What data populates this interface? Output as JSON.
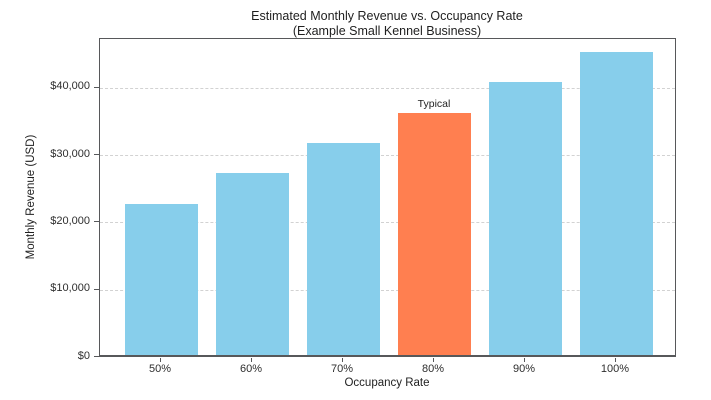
{
  "chart_data": {
    "type": "bar",
    "title": "Estimated Monthly Revenue vs. Occupancy Rate",
    "subtitle": "(Example Small Kennel Business)",
    "xlabel": "Occupancy Rate",
    "ylabel": "Monthly Revenue (USD)",
    "categories": [
      "50%",
      "60%",
      "70%",
      "80%",
      "90%",
      "100%"
    ],
    "values": [
      22500,
      27000,
      31500,
      36000,
      40500,
      45000
    ],
    "ylim": [
      0,
      47250
    ],
    "yticks": [
      0,
      10000,
      20000,
      30000,
      40000
    ],
    "ytick_labels": [
      "$0",
      "$10,000",
      "$20,000",
      "$30,000",
      "$40,000"
    ],
    "grid": "horizontal-dashed",
    "legend": "none",
    "highlight": {
      "index": 3,
      "category": "80%",
      "annotation": "Typical"
    },
    "colors": {
      "bar": "#87CEEB",
      "highlight_bar": "#FF7F50",
      "grid": "#d2d2d2",
      "spine": "#57585a",
      "text": "#1f1f1f"
    }
  }
}
